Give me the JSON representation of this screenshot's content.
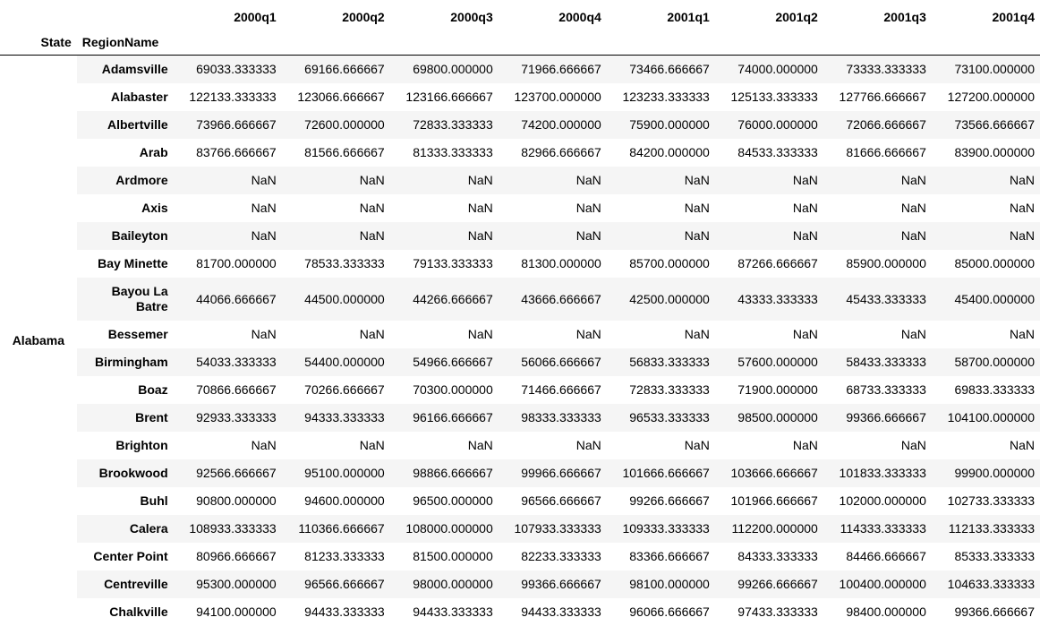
{
  "columns": [
    "2000q1",
    "2000q2",
    "2000q3",
    "2000q4",
    "2001q1",
    "2001q2",
    "2001q3",
    "2001q4"
  ],
  "index_names": {
    "state": "State",
    "region": "RegionName"
  },
  "state": "Alabama",
  "rows": [
    {
      "region": "Adamsville",
      "values": [
        "69033.333333",
        "69166.666667",
        "69800.000000",
        "71966.666667",
        "73466.666667",
        "74000.000000",
        "73333.333333",
        "73100.000000"
      ]
    },
    {
      "region": "Alabaster",
      "values": [
        "122133.333333",
        "123066.666667",
        "123166.666667",
        "123700.000000",
        "123233.333333",
        "125133.333333",
        "127766.666667",
        "127200.000000"
      ]
    },
    {
      "region": "Albertville",
      "values": [
        "73966.666667",
        "72600.000000",
        "72833.333333",
        "74200.000000",
        "75900.000000",
        "76000.000000",
        "72066.666667",
        "73566.666667"
      ]
    },
    {
      "region": "Arab",
      "values": [
        "83766.666667",
        "81566.666667",
        "81333.333333",
        "82966.666667",
        "84200.000000",
        "84533.333333",
        "81666.666667",
        "83900.000000"
      ]
    },
    {
      "region": "Ardmore",
      "values": [
        "NaN",
        "NaN",
        "NaN",
        "NaN",
        "NaN",
        "NaN",
        "NaN",
        "NaN"
      ]
    },
    {
      "region": "Axis",
      "values": [
        "NaN",
        "NaN",
        "NaN",
        "NaN",
        "NaN",
        "NaN",
        "NaN",
        "NaN"
      ]
    },
    {
      "region": "Baileyton",
      "values": [
        "NaN",
        "NaN",
        "NaN",
        "NaN",
        "NaN",
        "NaN",
        "NaN",
        "NaN"
      ]
    },
    {
      "region": "Bay Minette",
      "values": [
        "81700.000000",
        "78533.333333",
        "79133.333333",
        "81300.000000",
        "85700.000000",
        "87266.666667",
        "85900.000000",
        "85000.000000"
      ]
    },
    {
      "region": "Bayou La Batre",
      "values": [
        "44066.666667",
        "44500.000000",
        "44266.666667",
        "43666.666667",
        "42500.000000",
        "43333.333333",
        "45433.333333",
        "45400.000000"
      ]
    },
    {
      "region": "Bessemer",
      "values": [
        "NaN",
        "NaN",
        "NaN",
        "NaN",
        "NaN",
        "NaN",
        "NaN",
        "NaN"
      ]
    },
    {
      "region": "Birmingham",
      "values": [
        "54033.333333",
        "54400.000000",
        "54966.666667",
        "56066.666667",
        "56833.333333",
        "57600.000000",
        "58433.333333",
        "58700.000000"
      ]
    },
    {
      "region": "Boaz",
      "values": [
        "70866.666667",
        "70266.666667",
        "70300.000000",
        "71466.666667",
        "72833.333333",
        "71900.000000",
        "68733.333333",
        "69833.333333"
      ]
    },
    {
      "region": "Brent",
      "values": [
        "92933.333333",
        "94333.333333",
        "96166.666667",
        "98333.333333",
        "96533.333333",
        "98500.000000",
        "99366.666667",
        "104100.000000"
      ]
    },
    {
      "region": "Brighton",
      "values": [
        "NaN",
        "NaN",
        "NaN",
        "NaN",
        "NaN",
        "NaN",
        "NaN",
        "NaN"
      ]
    },
    {
      "region": "Brookwood",
      "values": [
        "92566.666667",
        "95100.000000",
        "98866.666667",
        "99966.666667",
        "101666.666667",
        "103666.666667",
        "101833.333333",
        "99900.000000"
      ]
    },
    {
      "region": "Buhl",
      "values": [
        "90800.000000",
        "94600.000000",
        "96500.000000",
        "96566.666667",
        "99266.666667",
        "101966.666667",
        "102000.000000",
        "102733.333333"
      ]
    },
    {
      "region": "Calera",
      "values": [
        "108933.333333",
        "110366.666667",
        "108000.000000",
        "107933.333333",
        "109333.333333",
        "112200.000000",
        "114333.333333",
        "112133.333333"
      ]
    },
    {
      "region": "Center Point",
      "values": [
        "80966.666667",
        "81233.333333",
        "81500.000000",
        "82233.333333",
        "83366.666667",
        "84333.333333",
        "84466.666667",
        "85333.333333"
      ]
    },
    {
      "region": "Centreville",
      "values": [
        "95300.000000",
        "96566.666667",
        "98000.000000",
        "99366.666667",
        "98100.000000",
        "99266.666667",
        "100400.000000",
        "104633.333333"
      ]
    },
    {
      "region": "Chalkville",
      "values": [
        "94100.000000",
        "94433.333333",
        "94433.333333",
        "94433.333333",
        "96066.666667",
        "97433.333333",
        "98400.000000",
        "99366.666667"
      ]
    }
  ]
}
